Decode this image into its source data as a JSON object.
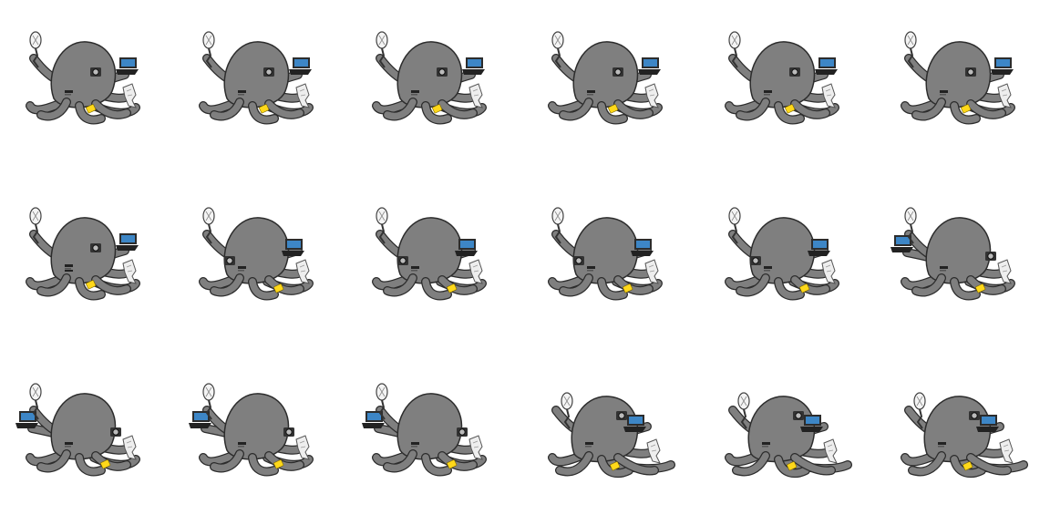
{
  "sprite_sheet": {
    "rows": 3,
    "columns": 6,
    "frame_count": 18,
    "colors": {
      "body": "#7f7f7f",
      "outline": "#2c2c2c",
      "band": "#ffd81a",
      "laptop_screen": "#3d86c6",
      "laptop_base": "#222222",
      "paper": "#eeeeee",
      "camera": "#333333"
    },
    "frames": [
      {
        "pose": "a",
        "laptop_side": "right",
        "band_tentacle": "front-left"
      },
      {
        "pose": "a",
        "laptop_side": "right",
        "band_tentacle": "front-left"
      },
      {
        "pose": "a",
        "laptop_side": "right",
        "band_tentacle": "front-left"
      },
      {
        "pose": "a",
        "laptop_side": "right",
        "band_tentacle": "front-left"
      },
      {
        "pose": "a",
        "laptop_side": "right",
        "band_tentacle": "front-left"
      },
      {
        "pose": "a",
        "laptop_side": "right",
        "band_tentacle": "front-left"
      },
      {
        "pose": "b",
        "laptop_side": "right",
        "band_tentacle": "front-left"
      },
      {
        "pose": "c",
        "laptop_side": "right",
        "band_tentacle": "front-right"
      },
      {
        "pose": "c",
        "laptop_side": "right",
        "band_tentacle": "front-right"
      },
      {
        "pose": "c",
        "laptop_side": "right",
        "band_tentacle": "front-right"
      },
      {
        "pose": "c",
        "laptop_side": "right",
        "band_tentacle": "front-right"
      },
      {
        "pose": "d",
        "laptop_side": "left",
        "band_tentacle": "front-right"
      },
      {
        "pose": "d",
        "laptop_side": "left",
        "band_tentacle": "front-right"
      },
      {
        "pose": "d",
        "laptop_side": "left",
        "band_tentacle": "front-right"
      },
      {
        "pose": "d",
        "laptop_side": "left",
        "band_tentacle": "front-right"
      },
      {
        "pose": "e",
        "laptop_side": "right",
        "band_tentacle": "front-left"
      },
      {
        "pose": "e",
        "laptop_side": "right",
        "band_tentacle": "front-left"
      },
      {
        "pose": "e",
        "laptop_side": "right",
        "band_tentacle": "front-left"
      }
    ]
  }
}
